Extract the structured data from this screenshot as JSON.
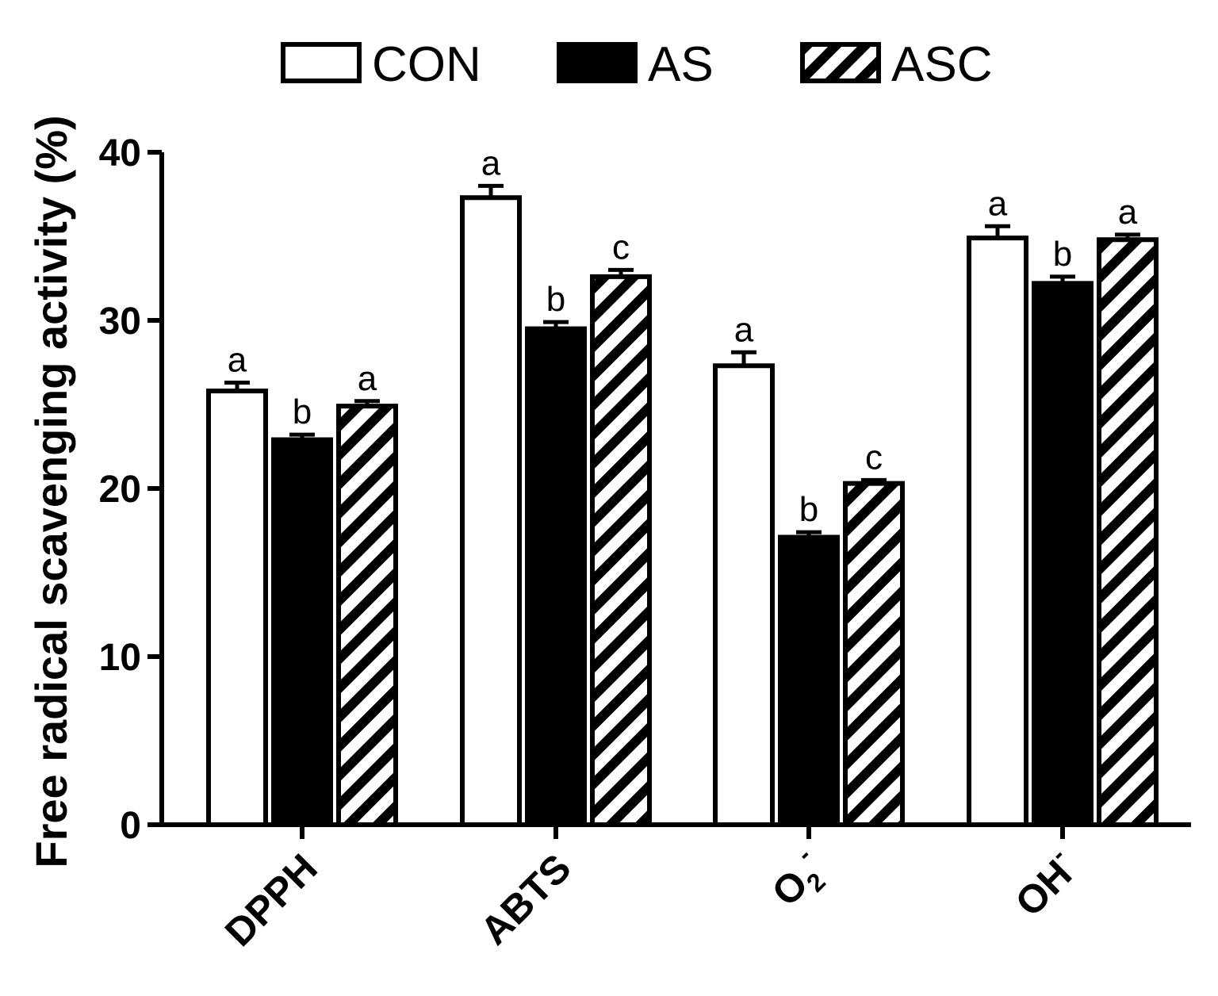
{
  "chart_data": {
    "type": "bar",
    "title": "",
    "xlabel": "",
    "ylabel": "Free radical scavenging activity (%)",
    "ylim": [
      0,
      40
    ],
    "yticks": [
      0,
      10,
      20,
      30,
      40
    ],
    "categories": [
      "DPPH",
      "ABTS",
      "O2-",
      "OH-"
    ],
    "category_display": [
      {
        "base": "DPPH",
        "sub": "",
        "sup": ""
      },
      {
        "base": "ABTS",
        "sub": "",
        "sup": ""
      },
      {
        "base": "O",
        "sub": "2",
        "sup": "-"
      },
      {
        "base": "OH",
        "sub": "",
        "sup": "-"
      }
    ],
    "legend_position": "top",
    "series": [
      {
        "name": "CON",
        "fill": "white",
        "values": [
          25.8,
          37.3,
          27.3,
          34.9
        ],
        "errors": [
          0.5,
          0.7,
          0.8,
          0.7
        ],
        "labels": [
          "a",
          "a",
          "a",
          "a"
        ]
      },
      {
        "name": "AS",
        "fill": "black",
        "values": [
          22.9,
          29.5,
          17.1,
          32.2
        ],
        "errors": [
          0.3,
          0.4,
          0.3,
          0.4
        ],
        "labels": [
          "b",
          "b",
          "b",
          "b"
        ]
      },
      {
        "name": "ASC",
        "fill": "hatch",
        "values": [
          24.9,
          32.6,
          20.3,
          34.8
        ],
        "errors": [
          0.3,
          0.4,
          0.2,
          0.3
        ],
        "labels": [
          "a",
          "c",
          "c",
          "a"
        ]
      }
    ]
  },
  "colors": {
    "ink": "#000000",
    "background": "#ffffff"
  }
}
